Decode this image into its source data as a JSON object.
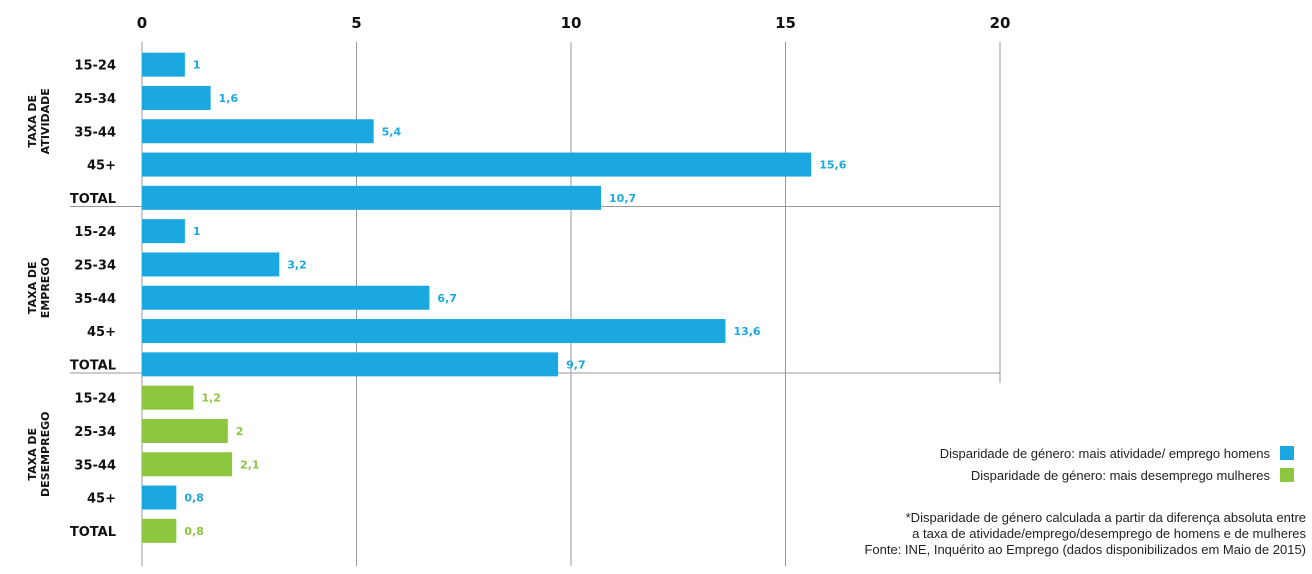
{
  "colors": {
    "homens": "#1ba8e0",
    "mulheres": "#8dc63f",
    "grid": "#9a9a9a"
  },
  "chart_data": {
    "type": "bar",
    "orientation": "horizontal",
    "xlim": [
      0,
      20
    ],
    "x_ticks": [
      "0",
      "5",
      "10",
      "15",
      "20"
    ],
    "grid": true,
    "groups": [
      {
        "label_lines": [
          "TAXA DE",
          "ATIVIDADE"
        ],
        "bars": [
          {
            "category": "15-24",
            "value": 1,
            "value_label": "1",
            "series": "homens"
          },
          {
            "category": "25-34",
            "value": 1.6,
            "value_label": "1,6",
            "series": "homens"
          },
          {
            "category": "35-44",
            "value": 5.4,
            "value_label": "5,4",
            "series": "homens"
          },
          {
            "category": "45+",
            "value": 15.6,
            "value_label": "15,6",
            "series": "homens"
          },
          {
            "category": "TOTAL",
            "value": 10.7,
            "value_label": "10,7",
            "series": "homens"
          }
        ]
      },
      {
        "label_lines": [
          "TAXA DE",
          "EMPREGO"
        ],
        "bars": [
          {
            "category": "15-24",
            "value": 1,
            "value_label": "1",
            "series": "homens"
          },
          {
            "category": "25-34",
            "value": 3.2,
            "value_label": "3,2",
            "series": "homens"
          },
          {
            "category": "35-44",
            "value": 6.7,
            "value_label": "6,7",
            "series": "homens"
          },
          {
            "category": "45+",
            "value": 13.6,
            "value_label": "13,6",
            "series": "homens"
          },
          {
            "category": "TOTAL",
            "value": 9.7,
            "value_label": "9,7",
            "series": "homens"
          }
        ]
      },
      {
        "label_lines": [
          "TAXA DE",
          "DESEMPREGO"
        ],
        "bars": [
          {
            "category": "15-24",
            "value": 1.2,
            "value_label": "1,2",
            "series": "mulheres"
          },
          {
            "category": "25-34",
            "value": 2,
            "value_label": "2",
            "series": "mulheres"
          },
          {
            "category": "35-44",
            "value": 2.1,
            "value_label": "2,1",
            "series": "mulheres"
          },
          {
            "category": "45+",
            "value": 0.8,
            "value_label": "0,8",
            "series": "homens"
          },
          {
            "category": "TOTAL",
            "value": 0.8,
            "value_label": "0,8",
            "series": "mulheres"
          }
        ]
      }
    ],
    "legend": [
      {
        "series": "homens",
        "label": "Disparidade de género: mais atividade/ emprego homens"
      },
      {
        "series": "mulheres",
        "label": "Disparidade de género: mais desemprego mulheres"
      }
    ],
    "legend_position": "bottom-right"
  },
  "notes": {
    "line1": "*Disparidade de género calculada a partir da diferença absoluta entre",
    "line2": "a taxa de atividade/emprego/desemprego de homens e de mulheres",
    "line3": "Fonte: INE, Inquérito ao Emprego (dados disponibilizados em Maio de 2015)"
  }
}
